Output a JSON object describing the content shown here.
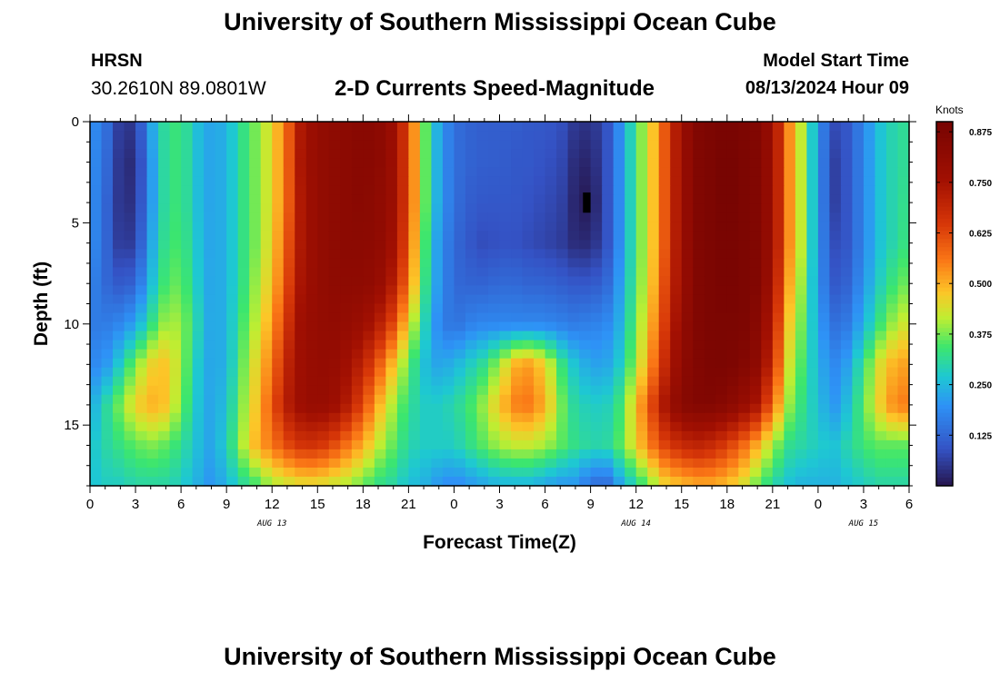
{
  "header": {
    "title": "University of Southern Mississippi Ocean Cube",
    "station": "HRSN",
    "coordinates": "30.2610N  89.0801W",
    "subtitle": "2-D Currents Speed-Magnitude",
    "model_start_label": "Model Start Time",
    "model_start_value": "08/13/2024 Hour 09"
  },
  "footer": {
    "title": "University of Southern Mississippi Ocean Cube"
  },
  "chart_data": {
    "type": "heatmap",
    "title": "2-D Currents Speed-Magnitude",
    "xlabel": "Forecast Time(Z)",
    "ylabel": "Depth (ft)",
    "x_units": "hours since Aug 13 00Z",
    "xlim": [
      0,
      54
    ],
    "ylim": [
      0,
      18
    ],
    "x_ticks": [
      {
        "value": 0,
        "label": "0"
      },
      {
        "value": 3,
        "label": "3"
      },
      {
        "value": 6,
        "label": "6"
      },
      {
        "value": 9,
        "label": "9"
      },
      {
        "value": 12,
        "label": "12"
      },
      {
        "value": 15,
        "label": "15"
      },
      {
        "value": 18,
        "label": "18"
      },
      {
        "value": 21,
        "label": "21"
      },
      {
        "value": 24,
        "label": "0"
      },
      {
        "value": 27,
        "label": "3"
      },
      {
        "value": 30,
        "label": "6"
      },
      {
        "value": 33,
        "label": "9"
      },
      {
        "value": 36,
        "label": "12"
      },
      {
        "value": 39,
        "label": "15"
      },
      {
        "value": 42,
        "label": "18"
      },
      {
        "value": 45,
        "label": "21"
      },
      {
        "value": 48,
        "label": "0"
      },
      {
        "value": 51,
        "label": "3"
      },
      {
        "value": 54,
        "label": "6"
      }
    ],
    "y_ticks": [
      {
        "value": 0,
        "label": "0"
      },
      {
        "value": 5,
        "label": "5"
      },
      {
        "value": 10,
        "label": "10"
      },
      {
        "value": 15,
        "label": "15"
      }
    ],
    "date_labels": [
      {
        "value": 12,
        "label": "AUG 13"
      },
      {
        "value": 36,
        "label": "AUG 14"
      },
      {
        "value": 51,
        "label": "AUG 15"
      }
    ],
    "colorbar": {
      "units": "Knots",
      "min": 0,
      "max": 0.9,
      "ticks": [
        0.125,
        0.25,
        0.375,
        0.5,
        0.625,
        0.75,
        0.875
      ],
      "tick_labels": [
        "0.125",
        "0.250",
        "0.375",
        "0.500",
        "0.625",
        "0.750",
        "0.875"
      ]
    },
    "grid_times": [
      0,
      1,
      2,
      3,
      4,
      5,
      6,
      7,
      8,
      9,
      10,
      11,
      12,
      13,
      14,
      15,
      16,
      17,
      18,
      19,
      20,
      21,
      22,
      23,
      24,
      25,
      26,
      27,
      28,
      29,
      30,
      31,
      32,
      33,
      34,
      35,
      36,
      37,
      38,
      39,
      40,
      41,
      42,
      43,
      44,
      45,
      46,
      47,
      48,
      49,
      50,
      51,
      52,
      53,
      54
    ],
    "grid_depths": [
      0,
      2,
      4,
      6,
      8,
      10,
      12,
      14,
      16,
      18
    ],
    "speed_knots": [
      [
        0.2,
        0.15,
        0.05,
        0.05,
        0.22,
        0.32,
        0.34,
        0.26,
        0.22,
        0.24,
        0.32,
        0.38,
        0.45,
        0.58,
        0.75,
        0.8,
        0.82,
        0.83,
        0.84,
        0.83,
        0.78,
        0.62,
        0.38,
        0.22,
        0.14,
        0.12,
        0.11,
        0.11,
        0.11,
        0.1,
        0.1,
        0.09,
        0.05,
        0.04,
        0.08,
        0.2,
        0.34,
        0.46,
        0.62,
        0.78,
        0.86,
        0.88,
        0.89,
        0.88,
        0.86,
        0.78,
        0.55,
        0.4,
        0.2,
        0.08,
        0.1,
        0.18,
        0.26,
        0.3,
        0.32
      ],
      [
        0.2,
        0.14,
        0.04,
        0.03,
        0.2,
        0.32,
        0.34,
        0.26,
        0.22,
        0.24,
        0.32,
        0.38,
        0.45,
        0.58,
        0.76,
        0.8,
        0.82,
        0.83,
        0.84,
        0.83,
        0.78,
        0.62,
        0.38,
        0.22,
        0.14,
        0.12,
        0.11,
        0.11,
        0.1,
        0.1,
        0.09,
        0.08,
        0.03,
        0.02,
        0.08,
        0.2,
        0.34,
        0.46,
        0.62,
        0.78,
        0.86,
        0.88,
        0.9,
        0.88,
        0.86,
        0.78,
        0.55,
        0.4,
        0.2,
        0.06,
        0.1,
        0.18,
        0.26,
        0.3,
        0.32
      ],
      [
        0.2,
        0.13,
        0.04,
        0.04,
        0.2,
        0.32,
        0.34,
        0.26,
        0.22,
        0.24,
        0.32,
        0.38,
        0.45,
        0.58,
        0.75,
        0.8,
        0.82,
        0.83,
        0.84,
        0.82,
        0.78,
        0.62,
        0.38,
        0.22,
        0.14,
        0.11,
        0.1,
        0.1,
        0.1,
        0.09,
        0.08,
        0.07,
        0.02,
        0.0,
        0.08,
        0.2,
        0.34,
        0.46,
        0.62,
        0.78,
        0.86,
        0.88,
        0.9,
        0.88,
        0.86,
        0.78,
        0.55,
        0.4,
        0.2,
        0.06,
        0.1,
        0.18,
        0.26,
        0.3,
        0.33
      ],
      [
        0.2,
        0.13,
        0.05,
        0.06,
        0.22,
        0.33,
        0.35,
        0.27,
        0.22,
        0.24,
        0.32,
        0.38,
        0.46,
        0.6,
        0.75,
        0.8,
        0.82,
        0.83,
        0.83,
        0.82,
        0.76,
        0.6,
        0.36,
        0.2,
        0.13,
        0.1,
        0.08,
        0.09,
        0.09,
        0.08,
        0.07,
        0.06,
        0.03,
        0.03,
        0.08,
        0.2,
        0.34,
        0.46,
        0.62,
        0.78,
        0.86,
        0.88,
        0.89,
        0.88,
        0.86,
        0.78,
        0.55,
        0.4,
        0.2,
        0.08,
        0.1,
        0.18,
        0.26,
        0.3,
        0.34
      ],
      [
        0.18,
        0.13,
        0.1,
        0.12,
        0.25,
        0.35,
        0.37,
        0.28,
        0.22,
        0.24,
        0.32,
        0.4,
        0.48,
        0.62,
        0.76,
        0.8,
        0.82,
        0.82,
        0.82,
        0.8,
        0.72,
        0.56,
        0.34,
        0.2,
        0.13,
        0.12,
        0.12,
        0.13,
        0.13,
        0.12,
        0.12,
        0.11,
        0.1,
        0.1,
        0.12,
        0.22,
        0.35,
        0.47,
        0.64,
        0.78,
        0.86,
        0.88,
        0.89,
        0.88,
        0.86,
        0.76,
        0.52,
        0.38,
        0.2,
        0.1,
        0.12,
        0.2,
        0.28,
        0.34,
        0.38
      ],
      [
        0.16,
        0.16,
        0.18,
        0.22,
        0.32,
        0.4,
        0.4,
        0.3,
        0.22,
        0.24,
        0.34,
        0.42,
        0.52,
        0.66,
        0.78,
        0.8,
        0.81,
        0.8,
        0.78,
        0.72,
        0.62,
        0.46,
        0.3,
        0.18,
        0.14,
        0.17,
        0.18,
        0.18,
        0.18,
        0.18,
        0.18,
        0.17,
        0.16,
        0.17,
        0.18,
        0.24,
        0.37,
        0.5,
        0.66,
        0.8,
        0.86,
        0.88,
        0.88,
        0.88,
        0.84,
        0.72,
        0.48,
        0.36,
        0.22,
        0.14,
        0.16,
        0.24,
        0.33,
        0.4,
        0.44
      ],
      [
        0.18,
        0.2,
        0.28,
        0.38,
        0.46,
        0.48,
        0.4,
        0.28,
        0.22,
        0.24,
        0.36,
        0.46,
        0.56,
        0.7,
        0.78,
        0.8,
        0.8,
        0.76,
        0.7,
        0.6,
        0.48,
        0.36,
        0.26,
        0.22,
        0.24,
        0.28,
        0.32,
        0.4,
        0.5,
        0.52,
        0.46,
        0.34,
        0.26,
        0.22,
        0.22,
        0.28,
        0.4,
        0.54,
        0.7,
        0.82,
        0.86,
        0.88,
        0.88,
        0.86,
        0.82,
        0.68,
        0.44,
        0.34,
        0.24,
        0.18,
        0.22,
        0.33,
        0.44,
        0.5,
        0.52
      ],
      [
        0.22,
        0.3,
        0.38,
        0.46,
        0.5,
        0.48,
        0.38,
        0.27,
        0.22,
        0.26,
        0.38,
        0.48,
        0.6,
        0.72,
        0.78,
        0.8,
        0.78,
        0.72,
        0.62,
        0.5,
        0.4,
        0.32,
        0.28,
        0.28,
        0.3,
        0.34,
        0.4,
        0.48,
        0.55,
        0.56,
        0.5,
        0.38,
        0.3,
        0.28,
        0.28,
        0.34,
        0.48,
        0.62,
        0.76,
        0.84,
        0.86,
        0.86,
        0.84,
        0.8,
        0.74,
        0.58,
        0.4,
        0.32,
        0.26,
        0.2,
        0.26,
        0.36,
        0.46,
        0.54,
        0.56
      ],
      [
        0.26,
        0.3,
        0.33,
        0.36,
        0.38,
        0.36,
        0.32,
        0.26,
        0.22,
        0.28,
        0.4,
        0.5,
        0.56,
        0.62,
        0.66,
        0.66,
        0.62,
        0.56,
        0.5,
        0.42,
        0.36,
        0.3,
        0.28,
        0.28,
        0.28,
        0.32,
        0.36,
        0.4,
        0.42,
        0.42,
        0.4,
        0.36,
        0.32,
        0.3,
        0.3,
        0.36,
        0.46,
        0.56,
        0.64,
        0.68,
        0.7,
        0.68,
        0.64,
        0.58,
        0.5,
        0.4,
        0.32,
        0.3,
        0.28,
        0.26,
        0.3,
        0.34,
        0.36,
        0.36,
        0.36
      ],
      [
        0.26,
        0.28,
        0.28,
        0.3,
        0.3,
        0.3,
        0.28,
        0.24,
        0.2,
        0.24,
        0.3,
        0.34,
        0.4,
        0.42,
        0.44,
        0.44,
        0.42,
        0.4,
        0.36,
        0.32,
        0.3,
        0.26,
        0.24,
        0.2,
        0.18,
        0.2,
        0.22,
        0.24,
        0.24,
        0.24,
        0.22,
        0.2,
        0.2,
        0.14,
        0.12,
        0.22,
        0.3,
        0.38,
        0.46,
        0.48,
        0.5,
        0.5,
        0.48,
        0.44,
        0.36,
        0.3,
        0.26,
        0.24,
        0.24,
        0.24,
        0.26,
        0.28,
        0.3,
        0.3,
        0.3
      ]
    ]
  }
}
